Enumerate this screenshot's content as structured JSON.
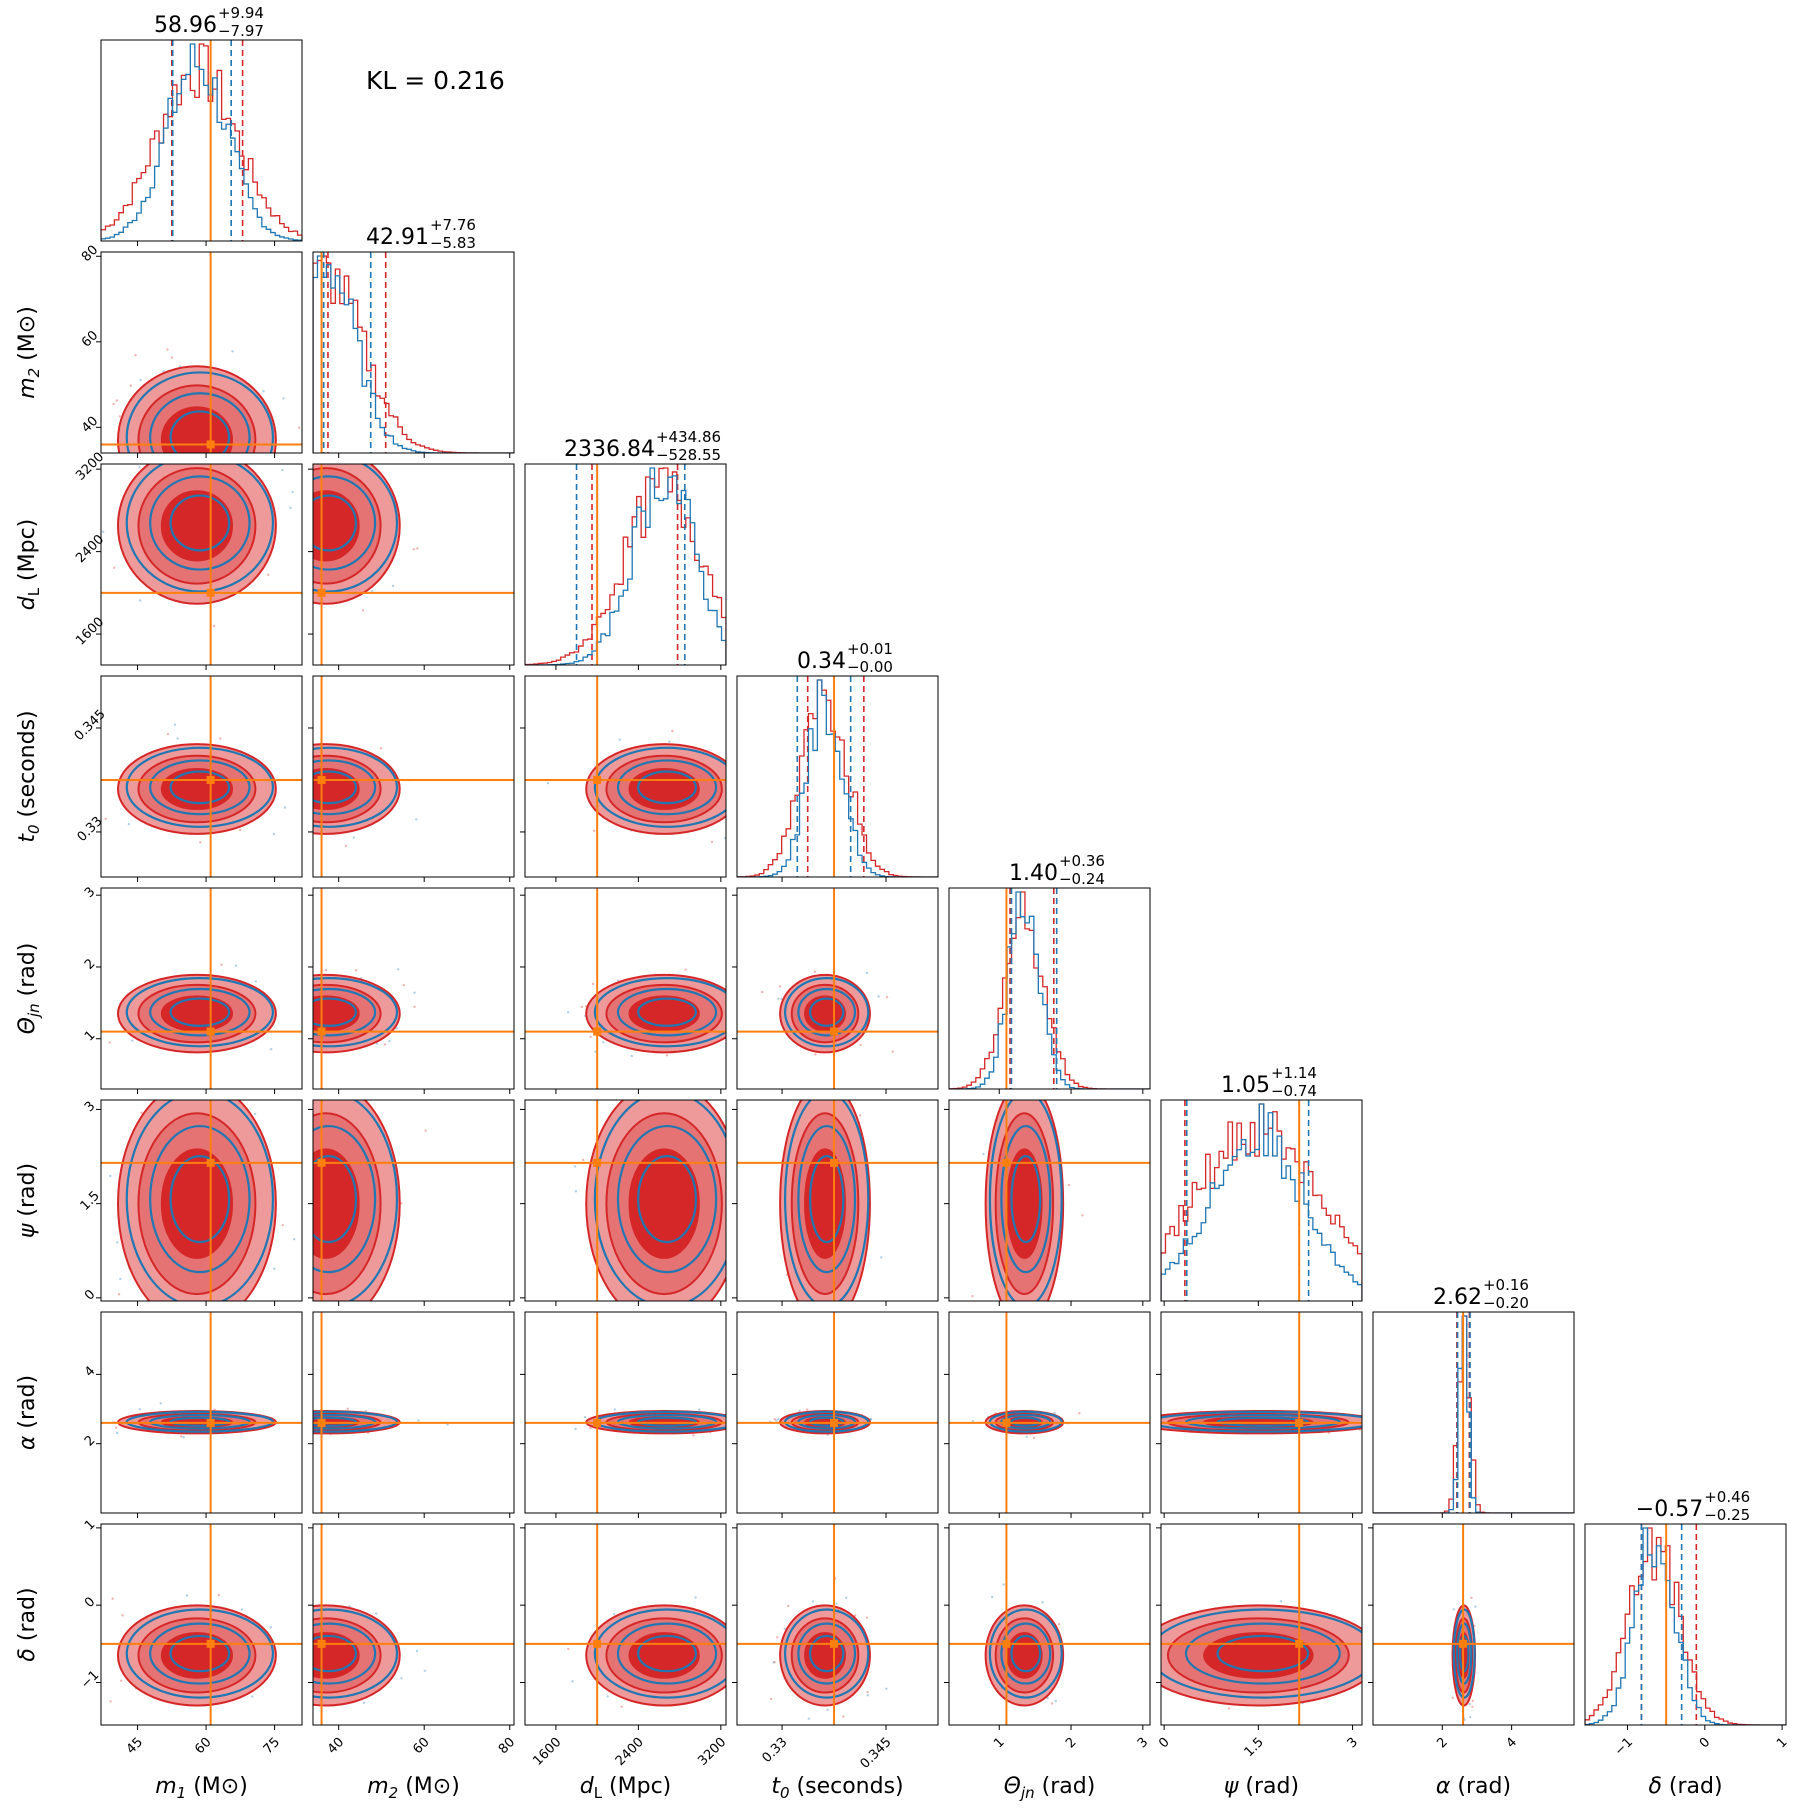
{
  "kl_label": "KL = 0.216",
  "chart_data": {
    "type": "corner",
    "colors": {
      "series_a": "#d62728",
      "series_b": "#1f77b4",
      "truth": "#ff7f0e"
    },
    "parameters": [
      {
        "key": "m1",
        "symbol": "m",
        "sub": "1",
        "unit": "(M⊙)",
        "range": [
          37,
          81
        ],
        "ticks": [
          45,
          60,
          75
        ],
        "truth": 61,
        "summary": {
          "median": "58.96",
          "plus": "+9.94",
          "minus": "−7.97"
        },
        "ci_a": [
          52.5,
          68
        ],
        "ci_b": [
          52.7,
          65.5
        ],
        "peak": 58,
        "width": 8
      },
      {
        "key": "m2",
        "symbol": "m",
        "sub": "2",
        "unit": "(M⊙)",
        "range": [
          34,
          81
        ],
        "ticks": [
          40,
          60,
          80
        ],
        "truth": 36,
        "summary": {
          "median": "42.91",
          "plus": "+7.76",
          "minus": "−5.83"
        },
        "ci_a": [
          37.5,
          51
        ],
        "ci_b": [
          36.5,
          47.5
        ],
        "peak": 37,
        "width": 8
      },
      {
        "key": "dL",
        "symbol": "d",
        "sub": "L",
        "unit": "(Mpc)",
        "range": [
          1300,
          3250
        ],
        "ticks": [
          1600,
          2400,
          3200
        ],
        "truth": 2000,
        "summary": {
          "median": "2336.84",
          "plus": "+434.86",
          "minus": "−528.55"
        },
        "ci_a": [
          1950,
          2780
        ],
        "ci_b": [
          1800,
          2850
        ],
        "peak": 2650,
        "width": 350
      },
      {
        "key": "t0",
        "symbol": "t",
        "sub": "0",
        "unit": "(seconds)",
        "range": [
          0.3235,
          0.3525
        ],
        "ticks": [
          0.33,
          0.345
        ],
        "truth": 0.3375,
        "summary": {
          "median": "0.34",
          "plus": "+0.01",
          "minus": "−0.00"
        },
        "ci_a": [
          0.3337,
          0.3418
        ],
        "ci_b": [
          0.3322,
          0.3399
        ],
        "peak": 0.3362,
        "width": 0.003
      },
      {
        "key": "theta",
        "symbol": "Θ",
        "sub": "jn",
        "unit": "(rad)",
        "range": [
          0.3,
          3.1
        ],
        "ticks": [
          1,
          2,
          3
        ],
        "truth": 1.1,
        "summary": {
          "median": "1.40",
          "plus": "+0.36",
          "minus": "−0.24"
        },
        "ci_a": [
          1.15,
          1.76
        ],
        "ci_b": [
          1.17,
          1.8
        ],
        "peak": 1.35,
        "width": 0.25
      },
      {
        "key": "psi",
        "symbol": "ψ",
        "sub": "",
        "unit": "(rad)",
        "range": [
          -0.05,
          3.15
        ],
        "ticks": [
          0.0,
          1.5,
          3.0
        ],
        "truth": 2.15,
        "summary": {
          "median": "1.05",
          "plus": "+1.14",
          "minus": "−0.74"
        },
        "ci_a": [
          0.33,
          2.15
        ],
        "ci_b": [
          0.36,
          2.3
        ],
        "peak": 1.5,
        "width": 0.9
      },
      {
        "key": "alpha",
        "symbol": "α",
        "sub": "",
        "unit": "(rad)",
        "range": [
          0.0,
          5.8
        ],
        "ticks": [
          2,
          4
        ],
        "truth": 2.6,
        "summary": {
          "median": "2.62",
          "plus": "+0.16",
          "minus": "−0.20"
        },
        "ci_a": [
          2.42,
          2.78
        ],
        "ci_b": [
          2.44,
          2.8
        ],
        "peak": 2.62,
        "width": 0.15
      },
      {
        "key": "delta",
        "symbol": "δ",
        "sub": "",
        "unit": "(rad)",
        "range": [
          -1.55,
          1.05
        ],
        "ticks": [
          -1,
          0,
          1
        ],
        "truth": -0.5,
        "summary": {
          "median": "−0.57",
          "plus": "+0.46",
          "minus": "−0.25"
        },
        "ci_a": [
          -0.82,
          -0.11
        ],
        "ci_b": [
          -0.82,
          -0.3
        ],
        "peak": -0.65,
        "width": 0.3
      }
    ]
  }
}
